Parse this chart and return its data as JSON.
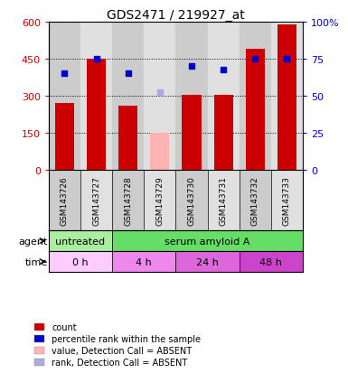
{
  "title": "GDS2471 / 219927_at",
  "samples": [
    "GSM143726",
    "GSM143727",
    "GSM143728",
    "GSM143729",
    "GSM143730",
    "GSM143731",
    "GSM143732",
    "GSM143733"
  ],
  "counts": [
    270,
    450,
    260,
    null,
    305,
    305,
    490,
    590
  ],
  "counts_absent": [
    null,
    null,
    null,
    150,
    null,
    null,
    null,
    null
  ],
  "percentile_ranks": [
    65,
    75,
    65,
    null,
    70,
    67.5,
    75,
    75
  ],
  "percentile_ranks_absent": [
    null,
    null,
    null,
    52.5,
    null,
    null,
    null,
    null
  ],
  "ylim_left": [
    0,
    600
  ],
  "ylim_right": [
    0,
    100
  ],
  "yticks_left": [
    0,
    150,
    300,
    450,
    600
  ],
  "yticks_right": [
    0,
    25,
    50,
    75,
    100
  ],
  "bar_color": "#cc0000",
  "bar_absent_color": "#ffb3b3",
  "dot_color": "#0000cc",
  "dot_absent_color": "#aaaadd",
  "agent_labels": [
    {
      "label": "untreated",
      "span": [
        0,
        2
      ],
      "color": "#aaeea0"
    },
    {
      "label": "serum amyloid A",
      "span": [
        2,
        8
      ],
      "color": "#66dd66"
    }
  ],
  "time_labels": [
    {
      "label": "0 h",
      "span": [
        0,
        2
      ],
      "color": "#ffccff"
    },
    {
      "label": "4 h",
      "span": [
        2,
        4
      ],
      "color": "#ee88ee"
    },
    {
      "label": "24 h",
      "span": [
        4,
        6
      ],
      "color": "#dd66dd"
    },
    {
      "label": "48 h",
      "span": [
        6,
        8
      ],
      "color": "#cc44cc"
    }
  ],
  "legend_items": [
    {
      "label": "count",
      "color": "#cc0000"
    },
    {
      "label": "percentile rank within the sample",
      "color": "#0000cc"
    },
    {
      "label": "value, Detection Call = ABSENT",
      "color": "#ffb3b3"
    },
    {
      "label": "rank, Detection Call = ABSENT",
      "color": "#aaaadd"
    }
  ],
  "col_bg_colors": [
    "#cccccc",
    "#e0e0e0"
  ],
  "left_tick_color": "#cc0000",
  "right_tick_color": "#0000cc"
}
